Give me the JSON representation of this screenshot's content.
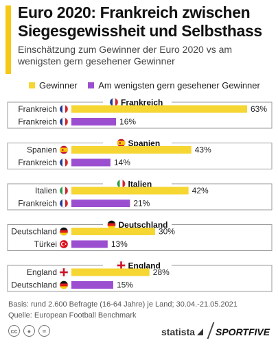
{
  "title": "Euro 2020: Frankreich zwischen Siegesgewissheit und Selbsthass",
  "subtitle": "Einschätzung zum Gewinner der Euro 2020 vs am wenigsten gern gesehener Gewinner",
  "colors": {
    "winner": "#f5d633",
    "least": "#9b4fd0",
    "accent": "#f5c816"
  },
  "legend": {
    "winner": "Gewinner",
    "least": "Am wenigsten gern gesehener Gewinner"
  },
  "chart_data": {
    "type": "bar",
    "orientation": "horizontal",
    "unit": "%",
    "xlim": [
      0,
      63
    ],
    "series": [
      {
        "name": "Gewinner",
        "color": "#f5d633"
      },
      {
        "name": "Am wenigsten gern gesehener Gewinner",
        "color": "#9b4fd0"
      }
    ],
    "groups": [
      {
        "country": "Frankreich",
        "flag": "france",
        "rows": [
          {
            "label": "Frankreich",
            "flag": "france",
            "series": "winner",
            "value": 63
          },
          {
            "label": "Frankreich",
            "flag": "france",
            "series": "least",
            "value": 16
          }
        ]
      },
      {
        "country": "Spanien",
        "flag": "spain",
        "rows": [
          {
            "label": "Spanien",
            "flag": "spain",
            "series": "winner",
            "value": 43
          },
          {
            "label": "Frankreich",
            "flag": "france",
            "series": "least",
            "value": 14
          }
        ]
      },
      {
        "country": "Italien",
        "flag": "italy",
        "rows": [
          {
            "label": "Italien",
            "flag": "italy",
            "series": "winner",
            "value": 42
          },
          {
            "label": "Frankreich",
            "flag": "france",
            "series": "least",
            "value": 21
          }
        ]
      },
      {
        "country": "Deutschland",
        "flag": "germany",
        "rows": [
          {
            "label": "Deutschland",
            "flag": "germany",
            "series": "winner",
            "value": 30
          },
          {
            "label": "Türkei",
            "flag": "turkey",
            "series": "least",
            "value": 13
          }
        ]
      },
      {
        "country": "England",
        "flag": "england",
        "rows": [
          {
            "label": "England",
            "flag": "england",
            "series": "winner",
            "value": 28
          },
          {
            "label": "Deutschland",
            "flag": "germany",
            "series": "least",
            "value": 15
          }
        ]
      }
    ]
  },
  "footnotes": {
    "basis": "Basis: rund 2.600 Befragte (16-64 Jahre) je Land; 30.04.-21.05.2021",
    "source": "Quelle: European Football Benchmark"
  },
  "branding": {
    "statista": "statista",
    "sportfive": "SPORTFIVE"
  },
  "cc_icons": [
    "cc-icon",
    "by-icon",
    "nd-icon"
  ]
}
